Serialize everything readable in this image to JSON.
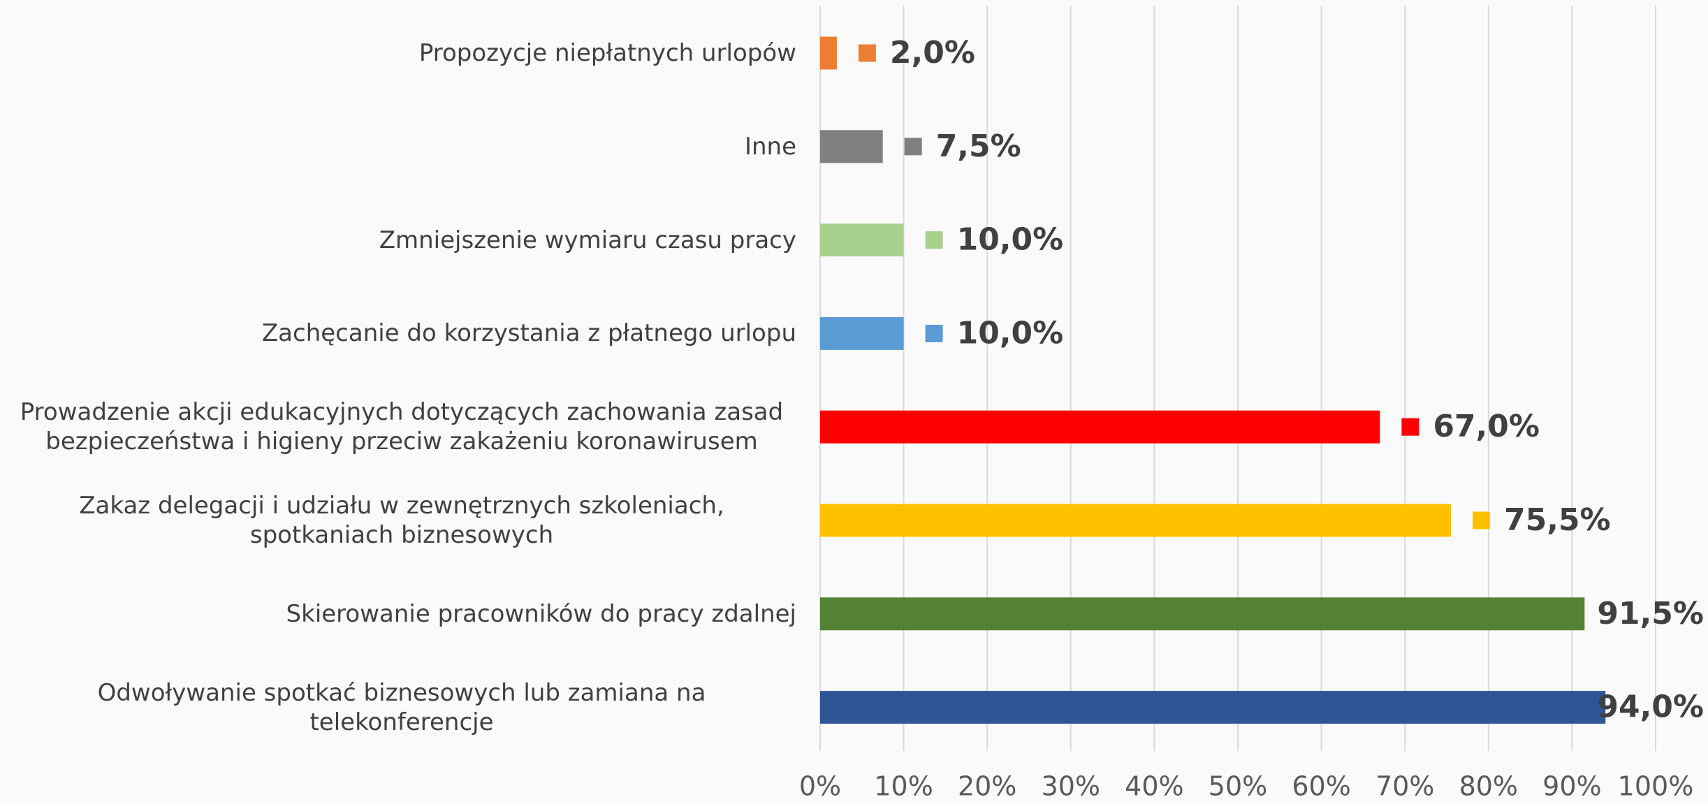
{
  "chart_data": {
    "type": "bar",
    "orientation": "horizontal",
    "categories": [
      "Propozycje niepłatnych urlopów",
      "Inne",
      "Zmniejszenie wymiaru czasu pracy",
      "Zachęcanie do korzystania z płatnego urlopu",
      "Prowadzenie akcji edukacyjnych dotyczących zachowania zasad bezpieczeństwa i higieny przeciw zakażeniu koronawirusem",
      "Zakaz delegacji i udziału w zewnętrznych szkoleniach, spotkaniach biznesowych",
      "Skierowanie pracowników do pracy zdalnej",
      "Odwoływanie spotkać biznesowych lub zamiana na telekonferencje"
    ],
    "values": [
      2.0,
      7.5,
      10.0,
      10.0,
      67.0,
      75.5,
      91.5,
      94.0
    ],
    "value_labels": [
      "2,0%",
      "7,5%",
      "10,0%",
      "10,0%",
      "67,0%",
      "75,5%",
      "91,5%",
      "94,0%"
    ],
    "colors": [
      "#ed7d31",
      "#7f7f7f",
      "#a9d18e",
      "#5b9bd5",
      "#ff0000",
      "#ffc000",
      "#548235",
      "#2f5597"
    ],
    "xlim": [
      0,
      100
    ],
    "xticks": [
      {
        "value": 0,
        "label": "0%"
      },
      {
        "value": 10,
        "label": "10%"
      },
      {
        "value": 20,
        "label": "20%"
      },
      {
        "value": 30,
        "label": "30%"
      },
      {
        "value": 40,
        "label": "40%"
      },
      {
        "value": 50,
        "label": "50%"
      },
      {
        "value": 60,
        "label": "60%"
      },
      {
        "value": 70,
        "label": "70%"
      },
      {
        "value": 80,
        "label": "80%"
      },
      {
        "value": 90,
        "label": "90%"
      },
      {
        "value": 100,
        "label": "100%"
      }
    ],
    "grid": true
  }
}
